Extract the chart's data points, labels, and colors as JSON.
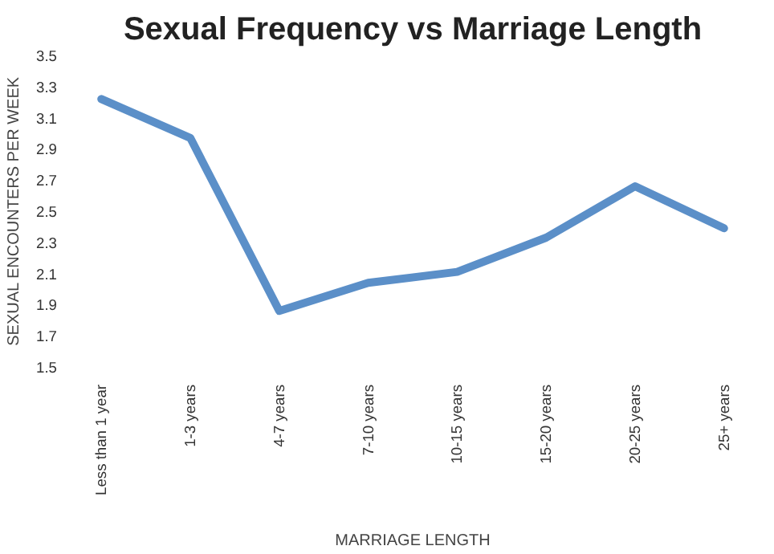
{
  "chart_data": {
    "type": "line",
    "title": "Sexual Frequency vs Marriage Length",
    "xlabel": "MARRIAGE LENGTH",
    "ylabel": "SEXUAL ENCOUNTERS PER WEEK",
    "categories": [
      "Less than 1 year",
      "1-3 years",
      "4-7 years",
      "7-10 years",
      "10-15 years",
      "15-20 years",
      "20-25 years",
      "25+ years"
    ],
    "series": [
      {
        "color": "#5b8fc8",
        "values": [
          3.22,
          2.97,
          1.86,
          2.04,
          2.11,
          2.33,
          2.66,
          2.39
        ]
      }
    ],
    "ylim": [
      1.5,
      3.5
    ],
    "yticks": [
      1.5,
      1.7,
      1.9,
      2.1,
      2.3,
      2.5,
      2.7,
      2.9,
      3.1,
      3.3,
      3.5
    ],
    "grid": false,
    "marker": "none",
    "line_style": "solid"
  }
}
